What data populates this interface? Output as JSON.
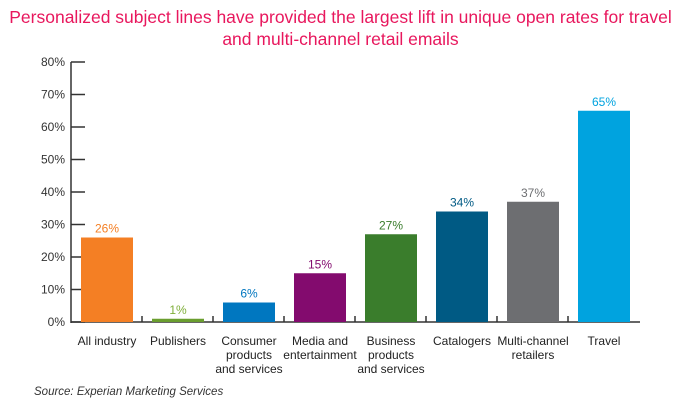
{
  "chart_data": {
    "type": "bar",
    "title": "Personalized subject lines have provided the largest lift in unique open rates for travel and multi-channel retail emails",
    "categories": [
      [
        "All industry"
      ],
      [
        "Publishers"
      ],
      [
        "Consumer",
        "products",
        "and services"
      ],
      [
        "Media and",
        "entertainment"
      ],
      [
        "Business",
        "products",
        "and services"
      ],
      [
        "Catalogers"
      ],
      [
        "Multi-channel",
        "retailers"
      ],
      [
        "Travel"
      ]
    ],
    "values": [
      26,
      1,
      6,
      15,
      27,
      34,
      37,
      65
    ],
    "value_labels": [
      "26%",
      "1%",
      "6%",
      "15%",
      "27%",
      "34%",
      "37%",
      "65%"
    ],
    "colors": [
      "#f47f24",
      "#6a9e2f",
      "#0077c0",
      "#830b6e",
      "#3a7d2c",
      "#005a84",
      "#6d6e71",
      "#00a3df"
    ],
    "label_colors": [
      "#f47f24",
      "#7fae3a",
      "#0077c0",
      "#830b6e",
      "#3a7d2c",
      "#005a84",
      "#6d6e71",
      "#00a3df"
    ],
    "yticks": [
      "0%",
      "10%",
      "20%",
      "30%",
      "40%",
      "50%",
      "60%",
      "70%",
      "80%"
    ],
    "ylim": [
      0,
      80
    ],
    "xlabel": "",
    "ylabel": "",
    "source": "Source: Experian Marketing Services"
  }
}
